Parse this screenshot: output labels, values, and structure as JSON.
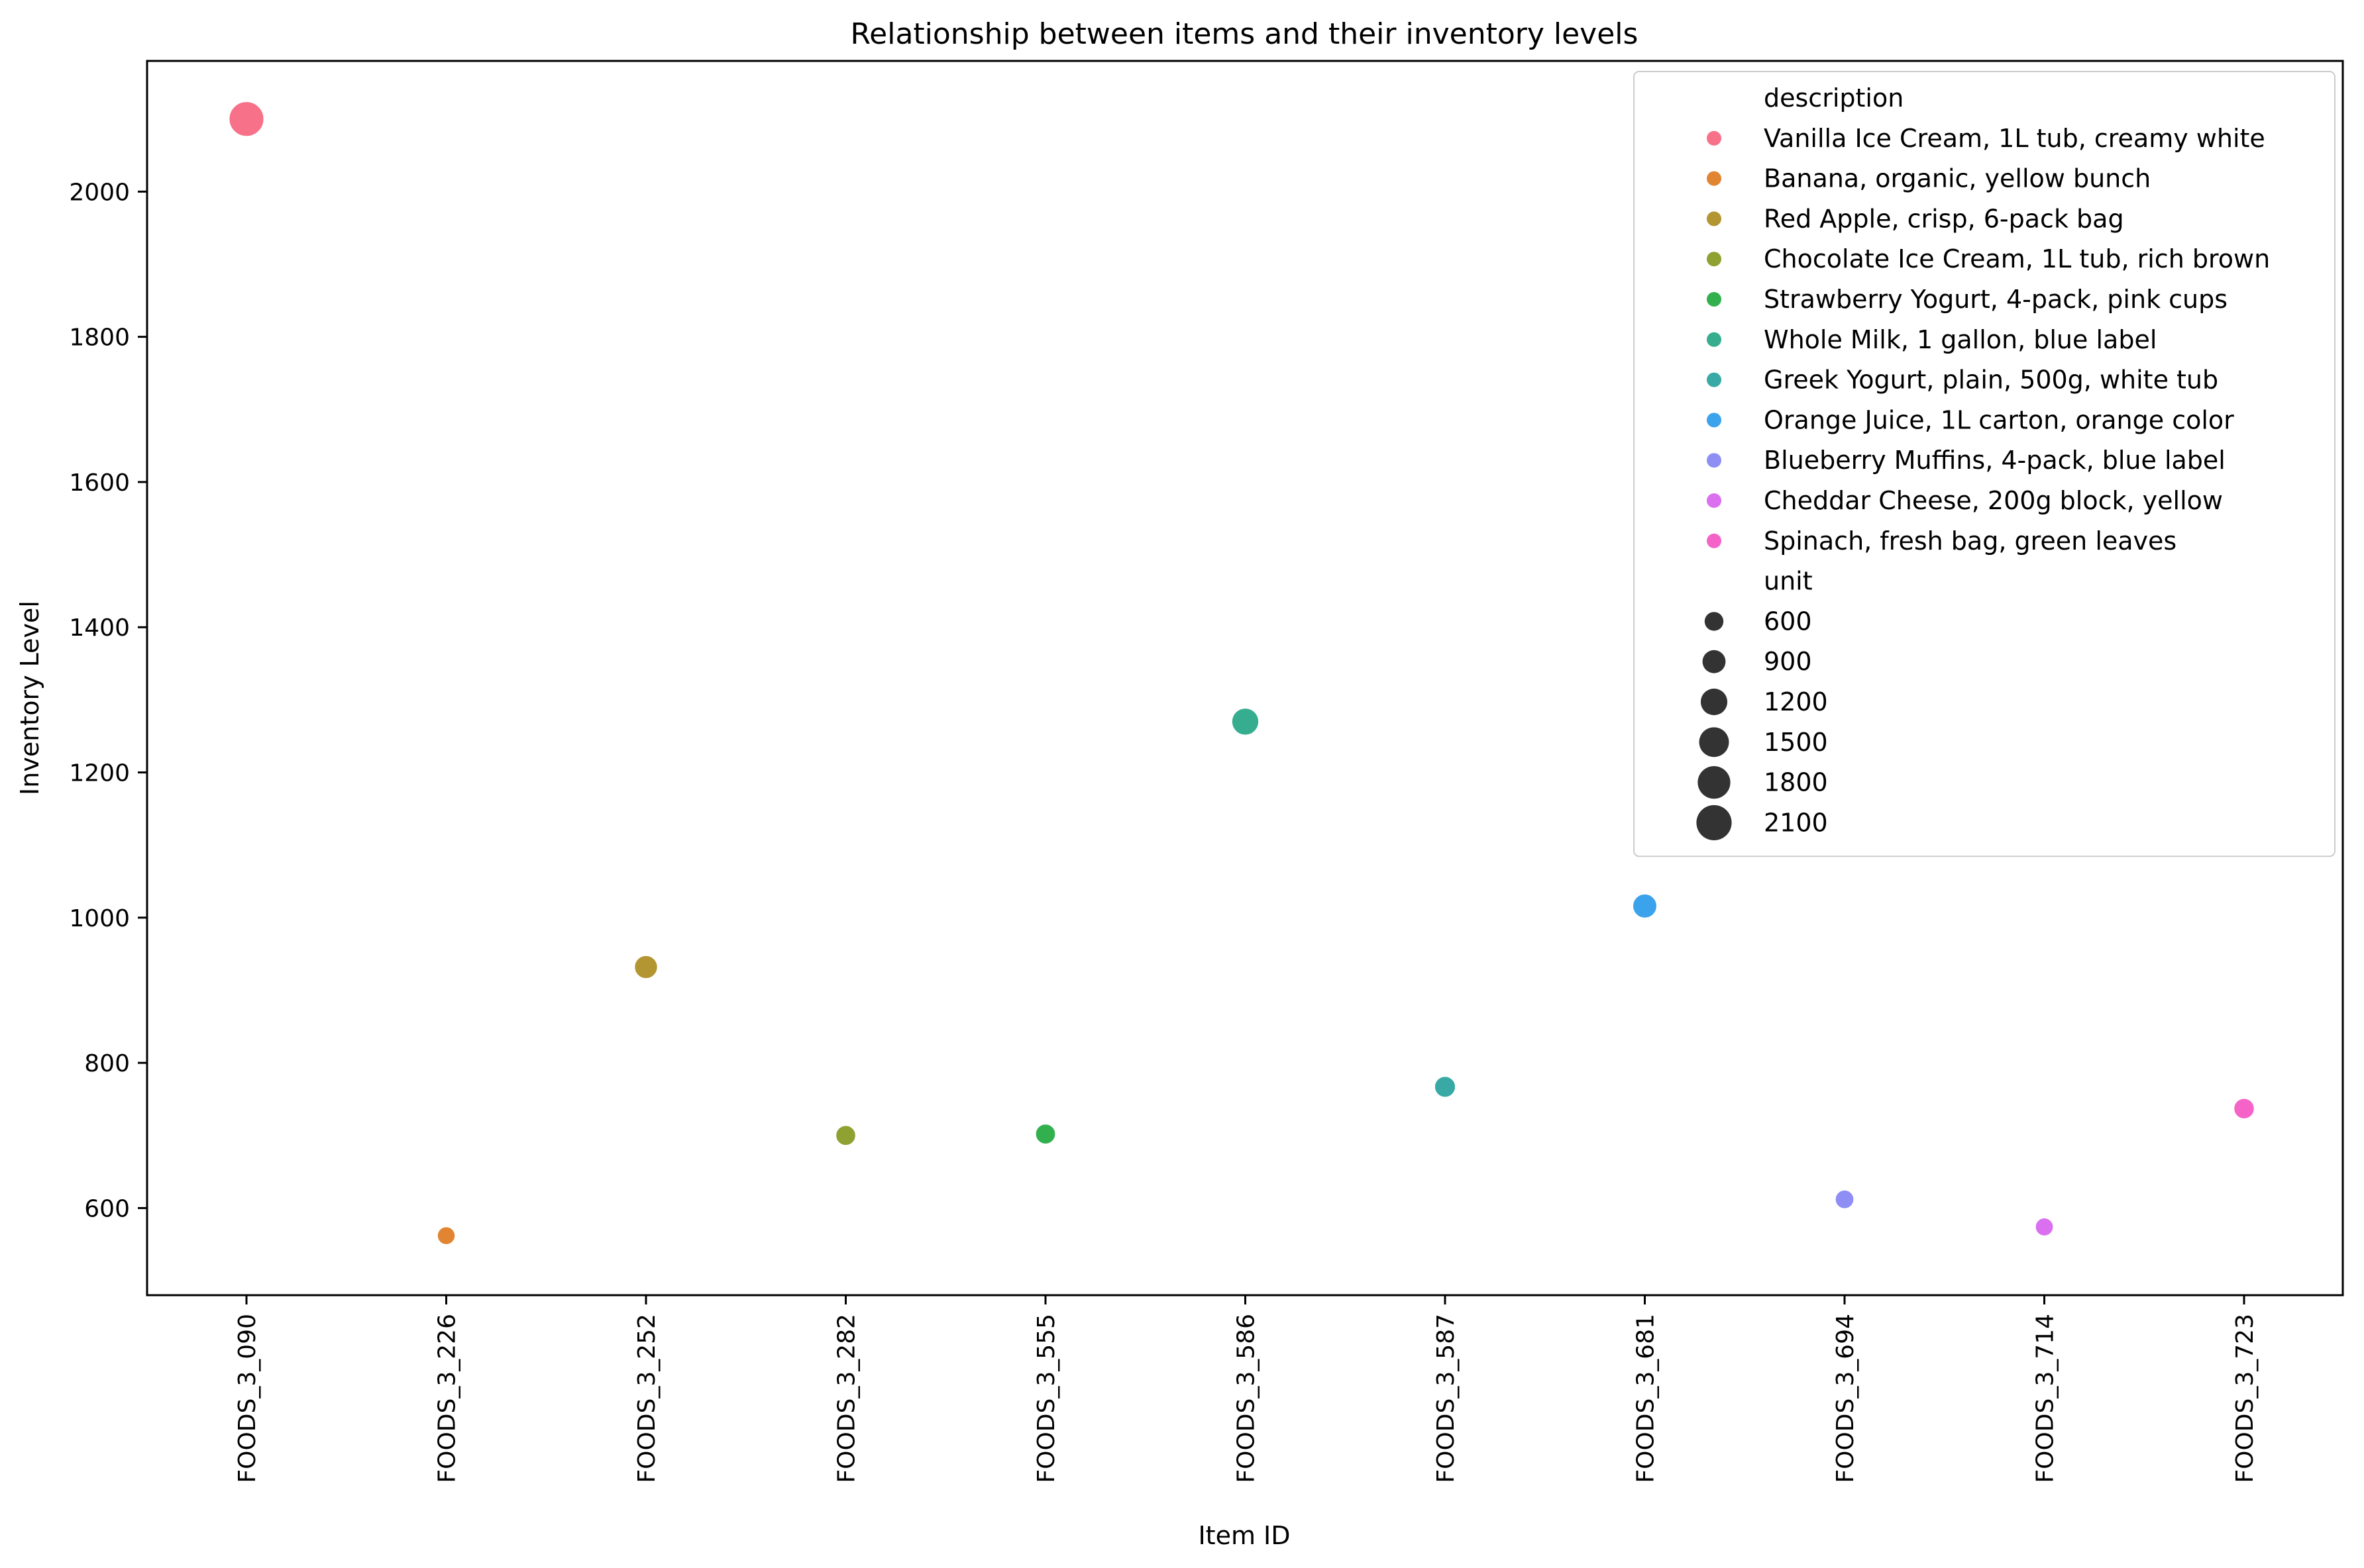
{
  "chart_data": {
    "type": "scatter",
    "title": "Relationship between items and their inventory levels",
    "xlabel": "Item ID",
    "ylabel": "Inventory Level",
    "ylim": [
      480,
      2180
    ],
    "yticks": [
      600,
      800,
      1000,
      1200,
      1400,
      1600,
      1800,
      2000
    ],
    "grid": false,
    "legend_position": "top-right",
    "categories": [
      "FOODS_3_090",
      "FOODS_3_226",
      "FOODS_3_252",
      "FOODS_3_282",
      "FOODS_3_555",
      "FOODS_3_586",
      "FOODS_3_587",
      "FOODS_3_681",
      "FOODS_3_694",
      "FOODS_3_714",
      "FOODS_3_723"
    ],
    "points": [
      {
        "x": "FOODS_3_090",
        "y": 2100,
        "unit": 2100,
        "description": "Vanilla Ice Cream, 1L tub, creamy white",
        "color": "#f77189"
      },
      {
        "x": "FOODS_3_226",
        "y": 562,
        "unit": 562,
        "description": "Banana, organic, yellow bunch",
        "color": "#e18532"
      },
      {
        "x": "FOODS_3_252",
        "y": 932,
        "unit": 932,
        "description": "Red Apple, crisp, 6-pack bag",
        "color": "#b39532"
      },
      {
        "x": "FOODS_3_282",
        "y": 700,
        "unit": 700,
        "description": "Chocolate Ice Cream, 1L tub, rich brown",
        "color": "#8fa131"
      },
      {
        "x": "FOODS_3_555",
        "y": 702,
        "unit": 702,
        "description": "Strawberry Yogurt, 4-pack, pink cups",
        "color": "#33b04e"
      },
      {
        "x": "FOODS_3_586",
        "y": 1270,
        "unit": 1270,
        "description": "Whole Milk, 1 gallon, blue label",
        "color": "#36ad8f"
      },
      {
        "x": "FOODS_3_587",
        "y": 767,
        "unit": 767,
        "description": "Greek Yogurt, plain, 500g, white tub",
        "color": "#38a9a5"
      },
      {
        "x": "FOODS_3_681",
        "y": 1016,
        "unit": 1016,
        "description": "Orange Juice, 1L carton, orange color",
        "color": "#3ba3ec"
      },
      {
        "x": "FOODS_3_694",
        "y": 612,
        "unit": 612,
        "description": "Blueberry Muffins, 4-pack, blue label",
        "color": "#8e8ef4"
      },
      {
        "x": "FOODS_3_714",
        "y": 574,
        "unit": 574,
        "description": "Cheddar Cheese, 200g block, yellow",
        "color": "#da6ff0"
      },
      {
        "x": "FOODS_3_723",
        "y": 737,
        "unit": 737,
        "description": "Spinach, fresh bag, green leaves",
        "color": "#f563c8"
      }
    ],
    "legend": {
      "hue_title": "description",
      "hue_entries": [
        {
          "label": "Vanilla Ice Cream, 1L tub, creamy white",
          "color": "#f77189"
        },
        {
          "label": "Banana, organic, yellow bunch",
          "color": "#e18532"
        },
        {
          "label": "Red Apple, crisp, 6-pack bag",
          "color": "#b39532"
        },
        {
          "label": "Chocolate Ice Cream, 1L tub, rich brown",
          "color": "#8fa131"
        },
        {
          "label": "Strawberry Yogurt, 4-pack, pink cups",
          "color": "#33b04e"
        },
        {
          "label": "Whole Milk, 1 gallon, blue label",
          "color": "#36ad8f"
        },
        {
          "label": "Greek Yogurt, plain, 500g, white tub",
          "color": "#38a9a5"
        },
        {
          "label": "Orange Juice, 1L carton, orange color",
          "color": "#3ba3ec"
        },
        {
          "label": "Blueberry Muffins, 4-pack, blue label",
          "color": "#8e8ef4"
        },
        {
          "label": "Cheddar Cheese, 200g block, yellow",
          "color": "#da6ff0"
        },
        {
          "label": "Spinach, fresh bag, green leaves",
          "color": "#f563c8"
        }
      ],
      "size_title": "unit",
      "size_entries": [
        {
          "label": "600",
          "value": 600
        },
        {
          "label": "900",
          "value": 900
        },
        {
          "label": "1200",
          "value": 1200
        },
        {
          "label": "1500",
          "value": 1500
        },
        {
          "label": "1800",
          "value": 1800
        },
        {
          "label": "2100",
          "value": 2100
        }
      ],
      "size_marker_color": "#333333"
    }
  }
}
